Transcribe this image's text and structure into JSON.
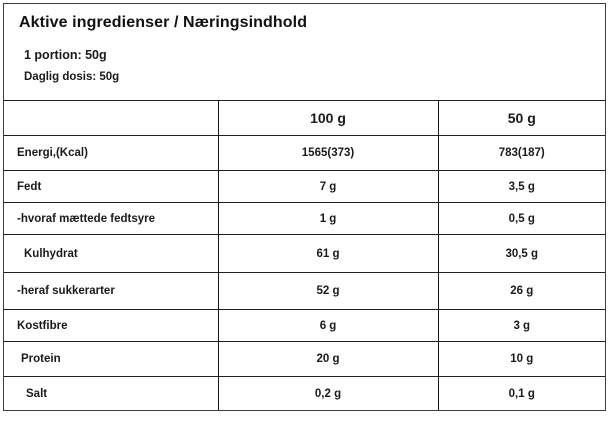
{
  "header": {
    "title": "Aktive ingredienser / Næringsindhold",
    "portion": "1 portion: 50g",
    "daily_dose": "Daglig dosis: 50g"
  },
  "table": {
    "columns": [
      "",
      "100 g",
      "50 g"
    ],
    "rows": [
      {
        "label": "Energi,(Kcal)",
        "per100": "1565(373)",
        "per50": "783(187)"
      },
      {
        "label": "Fedt",
        "per100": "7 g",
        "per50": "3,5 g"
      },
      {
        "label": "-hvoraf mættede fedtsyre",
        "per100": "1 g",
        "per50": "0,5 g"
      },
      {
        "label": "Kulhydrat",
        "per100": "61 g",
        "per50": "30,5 g"
      },
      {
        "label": "-heraf sukkerarter",
        "per100": "52 g",
        "per50": "26 g"
      },
      {
        "label": "Kostfibre",
        "per100": "6 g",
        "per50": "3 g"
      },
      {
        "label": "Protein",
        "per100": "20 g",
        "per50": "10 g"
      },
      {
        "label": "Salt",
        "per100": "0,2 g",
        "per50": "0,1 g"
      }
    ]
  },
  "colors": {
    "background": "#ffffff",
    "text": "#1a1a1a",
    "card_border": "#3d3d3d",
    "grid_line": "#1f1f1f"
  }
}
